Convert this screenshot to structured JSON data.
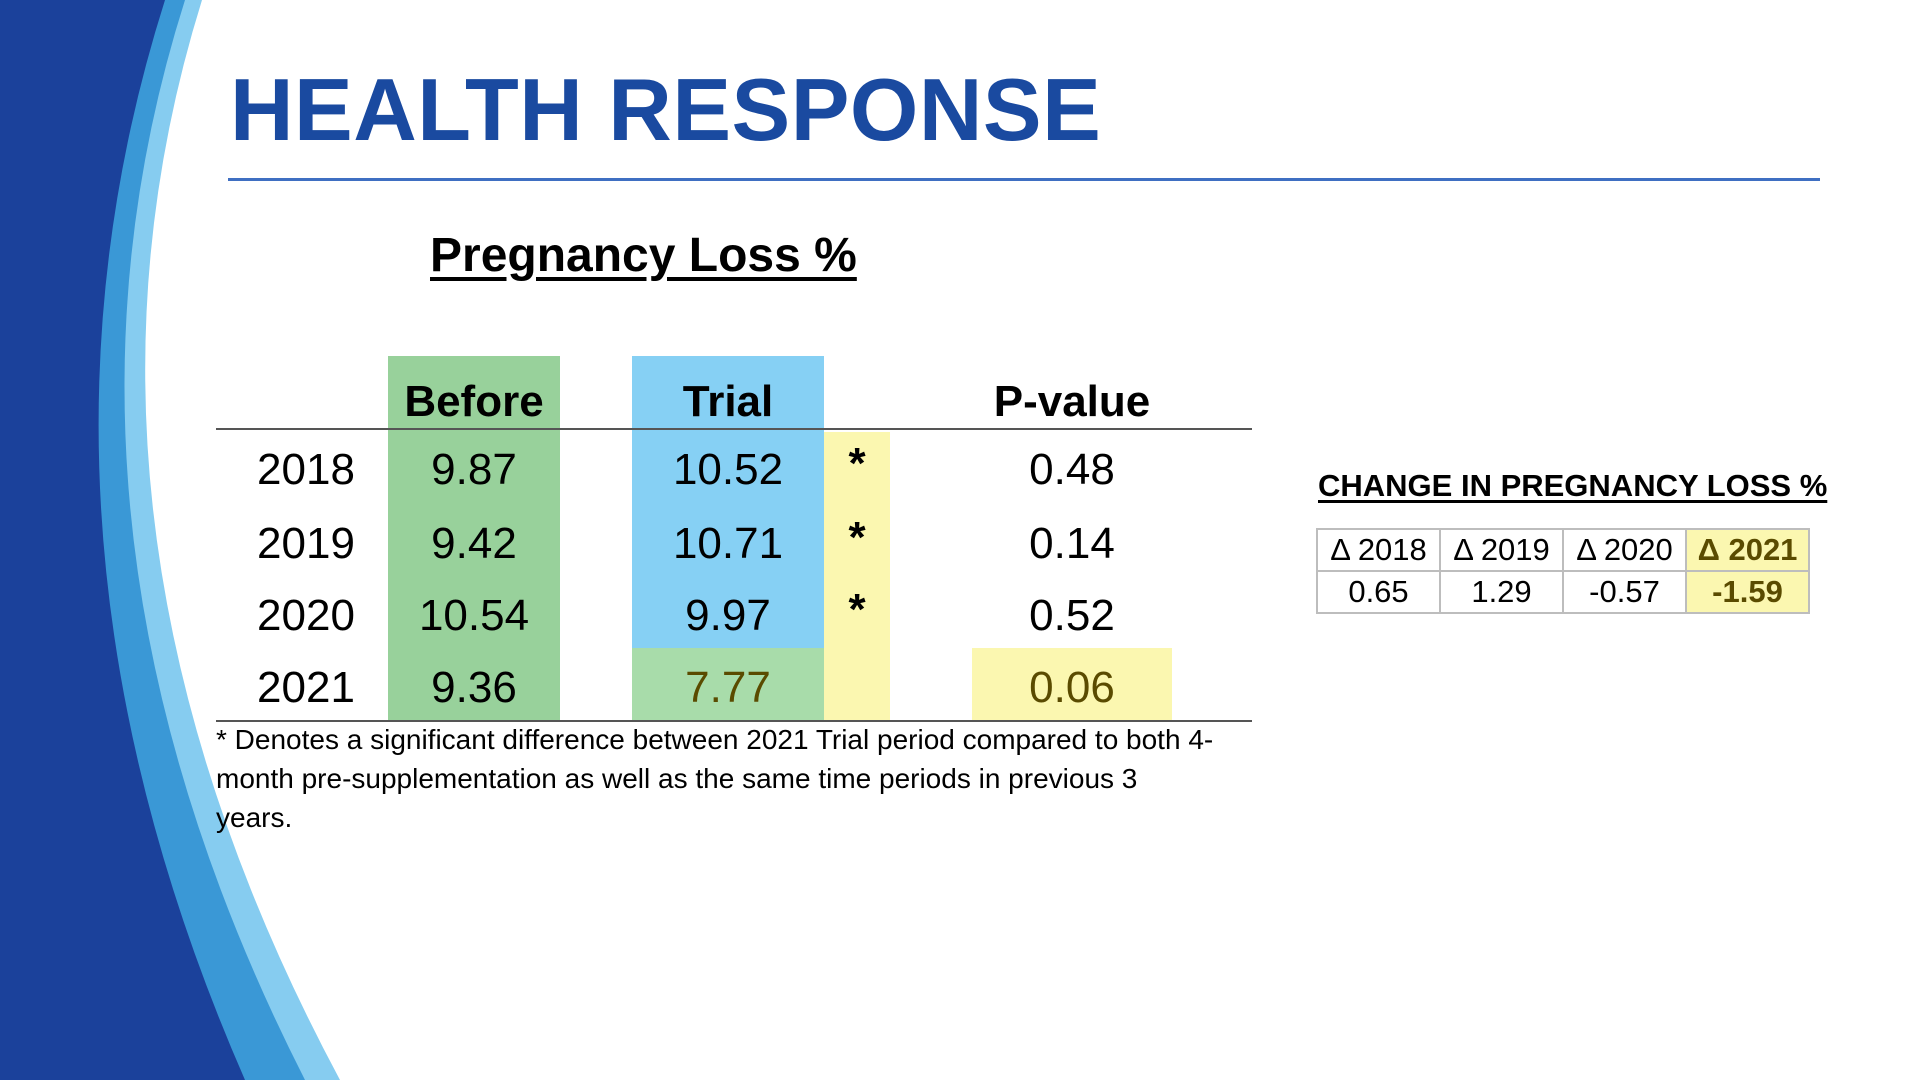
{
  "slide": {
    "title": "HEALTH RESPONSE",
    "colors": {
      "title_blue": "#1a4aa0",
      "band_dark": "#1b419b",
      "band_mid": "#3a98d6",
      "band_light": "#86ccf0",
      "before_green": "#98d19b",
      "trial_blue": "#86d0f4",
      "trial_2021_green": "#a8dcaa",
      "highlight_yellow": "#fbf7b0"
    }
  },
  "pregnancy_loss": {
    "heading": "Pregnancy Loss %",
    "headers": {
      "before": "Before",
      "trial": "Trial",
      "pvalue": "P-value"
    },
    "rows": [
      {
        "year": "2018",
        "before": "9.87",
        "trial": "10.52",
        "mark": "*",
        "pvalue": "0.48"
      },
      {
        "year": "2019",
        "before": "9.42",
        "trial": "10.71",
        "mark": "*",
        "pvalue": "0.14"
      },
      {
        "year": "2020",
        "before": "10.54",
        "trial": "9.97",
        "mark": "*",
        "pvalue": "0.52"
      },
      {
        "year": "2021",
        "before": "9.36",
        "trial": "7.77",
        "mark": "",
        "pvalue": "0.06"
      }
    ],
    "footnote": "* Denotes a significant difference between 2021 Trial period compared to both 4-month pre-supplementation as well as the same time periods in previous 3 years."
  },
  "change_table": {
    "heading": "CHANGE IN PREGNANCY LOSS %",
    "headers": [
      "Δ 2018",
      "Δ 2019",
      "Δ 2020",
      "Δ 2021"
    ],
    "values": [
      "0.65",
      "1.29",
      "-0.57",
      "-1.59"
    ]
  }
}
